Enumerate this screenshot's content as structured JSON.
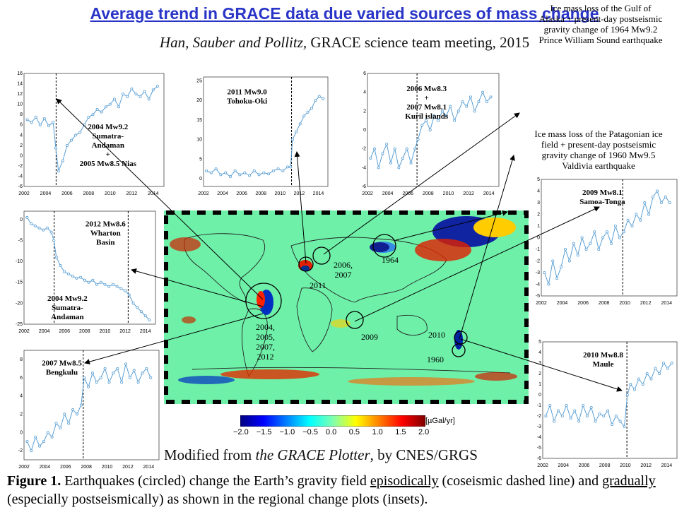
{
  "title": "Average trend in GRACE data due varied sources of mass change",
  "subtitle_authors": "Han, Sauber and Pollitz,",
  "subtitle_rest": " GRACE science team meeting, 2015",
  "map_credit_pre": "Modified from ",
  "map_credit_em": "the GRACE Plotter",
  "map_credit_post": ", by CNES/GRGS",
  "caption": {
    "label": "Figure 1.",
    "t1": "  Earthquakes (circled) change the Earth’s gravity field ",
    "u1": "episodically",
    "t2": " (coseismic dashed line) and ",
    "u2": "gradually",
    "t3": " (especially postseismically) as shown in the regional change plots (insets)."
  },
  "annotations": {
    "alaska": [
      "Ice mass loss of the Gulf of",
      "Alaska + present-day postseismic",
      "gravity change of 1964 Mw9.2",
      "Prince William Sound earthquake"
    ],
    "patagonia": [
      "Ice mass loss of the Patagonian ice",
      "field + present-day postseismic",
      "gravity change of 1960 Mw9.5",
      "Valdivia earthquake"
    ]
  },
  "map_labels": {
    "l2011": "2011",
    "l2006": "2006,\n2007",
    "l1964": "1964",
    "l2004": "2004,\n2005,\n2007,\n2012",
    "l2009": "2009",
    "l2010": "2010",
    "l1960": "1960"
  },
  "colorbar": {
    "unit": "[µGal/yr]",
    "ticks": [
      "−2.0",
      "−1.5",
      "−1.0",
      "−0.5",
      "0.0",
      "0.5",
      "1.0",
      "1.5",
      "2.0"
    ],
    "colors": [
      "#00007f",
      "#0000ff",
      "#007fff",
      "#00ffff",
      "#7fffaf",
      "#ffff00",
      "#ff7f00",
      "#ff0000",
      "#7f0000"
    ]
  },
  "colors": {
    "series": "#5a9fd4",
    "title": "#2a35c8"
  },
  "chart_data": [
    {
      "type": "line",
      "id": "sumatra",
      "label": [
        "2004 Mw9.2",
        "Sumatra-",
        "Andaman",
        "+",
        "2005 Mw8.5 Nias"
      ],
      "xlim": [
        2002,
        2015
      ],
      "ylim": [
        -6,
        16
      ],
      "xticks": [
        2002,
        2004,
        2006,
        2008,
        2010,
        2012,
        2014
      ],
      "yticks": [
        -6,
        -4,
        -2,
        0,
        2,
        4,
        6,
        8,
        10,
        12,
        14,
        16
      ],
      "events": [
        2004.98
      ],
      "x": [
        2002.3,
        2002.7,
        2003.1,
        2003.5,
        2003.9,
        2004.3,
        2004.7,
        2004.95,
        2005.2,
        2005.6,
        2006.0,
        2006.4,
        2006.8,
        2007.2,
        2007.6,
        2008.0,
        2008.4,
        2008.8,
        2009.2,
        2009.6,
        2010.0,
        2010.4,
        2010.8,
        2011.2,
        2011.6,
        2012.0,
        2012.4,
        2012.8,
        2013.2,
        2013.6,
        2014.0,
        2014.4
      ],
      "y": [
        7,
        6.5,
        7.5,
        6,
        7.2,
        5.8,
        6.5,
        1.5,
        -3,
        -1,
        2,
        3,
        4,
        4.5,
        6,
        7.5,
        8,
        9,
        8.5,
        9.5,
        10,
        11,
        9.5,
        12,
        11.5,
        13,
        12,
        11.5,
        12.5,
        11,
        12.8,
        13.5
      ]
    },
    {
      "type": "line",
      "id": "tohoku",
      "label": [
        "2011 Mw9.0",
        "Tohoku-Oki"
      ],
      "xlim": [
        2002,
        2015
      ],
      "ylim": [
        -2,
        26
      ],
      "xticks": [
        2002,
        2004,
        2006,
        2008,
        2010,
        2012,
        2014
      ],
      "yticks": [
        0,
        5,
        10,
        15,
        20,
        25
      ],
      "events": [
        2011.2
      ],
      "x": [
        2002.3,
        2002.8,
        2003.3,
        2003.8,
        2004.3,
        2004.8,
        2005.3,
        2005.8,
        2006.3,
        2006.8,
        2007.3,
        2007.8,
        2008.3,
        2008.8,
        2009.3,
        2009.8,
        2010.3,
        2010.8,
        2011.1,
        2011.3,
        2011.7,
        2012.1,
        2012.5,
        2012.9,
        2013.3,
        2013.7,
        2014.1,
        2014.5
      ],
      "y": [
        2,
        1.5,
        2.5,
        1,
        1.5,
        0.5,
        2,
        1,
        1.5,
        0.8,
        2,
        1,
        1.5,
        1.2,
        2,
        2.5,
        2,
        3,
        3,
        10,
        12,
        14,
        16,
        17,
        18,
        20,
        21,
        20.5
      ]
    },
    {
      "type": "line",
      "id": "kuril",
      "label": [
        "2006 Mw8.3",
        "+",
        "2007 Mw8.1",
        "Kuril islands"
      ],
      "xlim": [
        2002,
        2015
      ],
      "ylim": [
        -6,
        6
      ],
      "xticks": [
        2002,
        2004,
        2006,
        2008,
        2010,
        2012,
        2014
      ],
      "yticks": [
        -6,
        -4,
        -2,
        0,
        2,
        4,
        6
      ],
      "events": [
        2006.9
      ],
      "x": [
        2002.3,
        2002.7,
        2003.1,
        2003.5,
        2003.9,
        2004.3,
        2004.7,
        2005.1,
        2005.5,
        2005.9,
        2006.3,
        2006.7,
        2007.0,
        2007.4,
        2007.8,
        2008.2,
        2008.6,
        2009.0,
        2009.4,
        2009.8,
        2010.2,
        2010.6,
        2011.0,
        2011.4,
        2011.8,
        2012.2,
        2012.6,
        2013.0,
        2013.4,
        2013.8,
        2014.2
      ],
      "y": [
        -3,
        -2,
        -4,
        -2.5,
        -1.5,
        -3.5,
        -2,
        -4,
        -3,
        -2,
        -3.5,
        -2,
        -1,
        0.5,
        1,
        0,
        1.5,
        1,
        2,
        1.5,
        2.5,
        1,
        2,
        3,
        2.5,
        3.5,
        2,
        3,
        4,
        3,
        3.5
      ]
    },
    {
      "type": "line",
      "id": "samoa",
      "label": [
        "2009 Mw8.1",
        "Samoa-Tonga"
      ],
      "xlim": [
        2002,
        2015
      ],
      "ylim": [
        -5,
        5
      ],
      "xticks": [
        2002,
        2004,
        2006,
        2008,
        2010,
        2012,
        2014
      ],
      "yticks": [
        -5,
        -4,
        -3,
        -2,
        -1,
        0,
        1,
        2,
        3,
        4,
        5
      ],
      "events": [
        2009.8
      ],
      "x": [
        2002.3,
        2002.7,
        2003.1,
        2003.5,
        2003.9,
        2004.3,
        2004.7,
        2005.1,
        2005.5,
        2005.9,
        2006.3,
        2006.7,
        2007.1,
        2007.5,
        2007.9,
        2008.3,
        2008.7,
        2009.1,
        2009.5,
        2009.9,
        2010.3,
        2010.7,
        2011.1,
        2011.5,
        2011.9,
        2012.3,
        2012.7,
        2013.1,
        2013.5,
        2013.9,
        2014.3
      ],
      "y": [
        -3,
        -4,
        -2,
        -3.5,
        -2.5,
        -1,
        -2,
        -0.5,
        -1.5,
        0,
        -1,
        -0.5,
        0.5,
        -1,
        0,
        0.5,
        -0.5,
        1,
        0,
        0.5,
        1.5,
        1,
        2,
        1.5,
        3,
        2,
        3.5,
        4,
        3,
        3.5,
        3
      ]
    },
    {
      "type": "line",
      "id": "wharton",
      "label": [
        "2012 Mw8.6",
        "Wharton",
        "Basin"
      ],
      "label2": [
        "2004 Mw9.2",
        "Sumatra-",
        "Andaman"
      ],
      "xlim": [
        2002,
        2015
      ],
      "ylim": [
        -25,
        2
      ],
      "xticks": [
        2002,
        2004,
        2006,
        2008,
        2010,
        2012,
        2014
      ],
      "yticks": [
        -25,
        -20,
        -15,
        -10,
        -5,
        0
      ],
      "events": [
        2004.98,
        2012.3
      ],
      "x": [
        2002.3,
        2002.7,
        2003.1,
        2003.5,
        2003.9,
        2004.3,
        2004.7,
        2004.95,
        2005.2,
        2005.6,
        2006.0,
        2006.4,
        2006.8,
        2007.2,
        2007.6,
        2008.0,
        2008.4,
        2008.8,
        2009.2,
        2009.6,
        2010.0,
        2010.4,
        2010.8,
        2011.2,
        2011.6,
        2012.0,
        2012.4,
        2012.8,
        2013.2,
        2013.6,
        2014.0,
        2014.4
      ],
      "y": [
        0.5,
        -1,
        -1.5,
        -2,
        -2.5,
        -2,
        -3,
        -5,
        -9,
        -11,
        -12.5,
        -13,
        -13.5,
        -14,
        -13.8,
        -14.5,
        -15,
        -14.5,
        -15.5,
        -15,
        -15.5,
        -16,
        -15.5,
        -16,
        -16.5,
        -17,
        -18,
        -20,
        -21,
        -22,
        -23,
        -24
      ]
    },
    {
      "type": "line",
      "id": "bengkulu",
      "label": [
        "2007 Mw8.5",
        "Bengkulu"
      ],
      "xlim": [
        2002,
        2015
      ],
      "ylim": [
        -3,
        9
      ],
      "xticks": [
        2002,
        2004,
        2006,
        2008,
        2010,
        2012,
        2014
      ],
      "yticks": [
        -2,
        0,
        2,
        4,
        6,
        8
      ],
      "events": [
        2007.7
      ],
      "x": [
        2002.3,
        2002.7,
        2003.1,
        2003.5,
        2003.9,
        2004.3,
        2004.7,
        2005.1,
        2005.5,
        2005.9,
        2006.3,
        2006.7,
        2007.1,
        2007.5,
        2007.8,
        2008.2,
        2008.6,
        2009.0,
        2009.4,
        2009.8,
        2010.2,
        2010.6,
        2011.0,
        2011.4,
        2011.8,
        2012.2,
        2012.6,
        2013.0,
        2013.4,
        2013.8,
        2014.2
      ],
      "y": [
        -1,
        -2,
        -0.5,
        -1.5,
        -1,
        0,
        -0.5,
        1,
        0.5,
        2,
        1,
        2.5,
        2,
        3,
        6,
        5,
        6.5,
        5.5,
        6,
        7,
        5.5,
        6.5,
        7,
        5.5,
        7.5,
        6,
        6.8,
        5.5,
        6.5,
        7,
        6
      ]
    },
    {
      "type": "line",
      "id": "maule",
      "label": [
        "2010 Mw8.8",
        "Maule"
      ],
      "xlim": [
        2002,
        2015
      ],
      "ylim": [
        -6,
        5
      ],
      "xticks": [
        2002,
        2004,
        2006,
        2008,
        2010,
        2012,
        2014
      ],
      "yticks": [
        -6,
        -5,
        -4,
        -3,
        -2,
        -1,
        0,
        1,
        2,
        3,
        4,
        5
      ],
      "events": [
        2010.15
      ],
      "x": [
        2002.3,
        2002.7,
        2003.1,
        2003.5,
        2003.9,
        2004.3,
        2004.7,
        2005.1,
        2005.5,
        2005.9,
        2006.3,
        2006.7,
        2007.1,
        2007.5,
        2007.9,
        2008.3,
        2008.7,
        2009.1,
        2009.5,
        2009.9,
        2010.2,
        2010.5,
        2010.9,
        2011.3,
        2011.7,
        2012.1,
        2012.5,
        2012.9,
        2013.3,
        2013.7,
        2014.1,
        2014.5
      ],
      "y": [
        -2,
        -1,
        -2.5,
        -1.5,
        -2,
        -1,
        -2.2,
        -1.5,
        -2.5,
        -1,
        -2,
        -1.2,
        -2.5,
        -1.8,
        -2,
        -1.5,
        -2.8,
        -2,
        -2.5,
        -3,
        0,
        1,
        0.5,
        1.5,
        1,
        2,
        1.5,
        2.5,
        2,
        3,
        2.5,
        3
      ]
    }
  ]
}
